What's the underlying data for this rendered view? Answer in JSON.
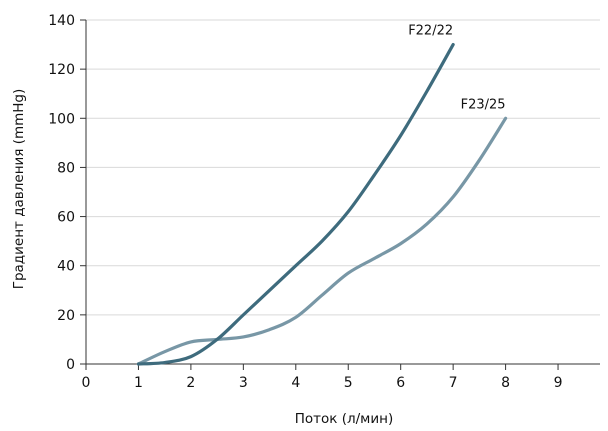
{
  "chart_data": {
    "type": "line",
    "title": "",
    "xlabel": "Поток (л/мин)",
    "ylabel": "Градиент давления (mmHg)",
    "xlim": [
      0,
      9.8
    ],
    "ylim": [
      0,
      140
    ],
    "x_ticks": [
      0,
      1,
      2,
      3,
      4,
      5,
      6,
      7,
      8,
      9
    ],
    "y_ticks": [
      0,
      20,
      40,
      60,
      80,
      100,
      120,
      140
    ],
    "grid": "y",
    "legend": "none",
    "series": [
      {
        "name": "F22/22",
        "color": "#3e6b7d",
        "points": [
          [
            1.0,
            0
          ],
          [
            1.5,
            0.6
          ],
          [
            2.0,
            3
          ],
          [
            2.5,
            10
          ],
          [
            3.0,
            20
          ],
          [
            3.5,
            30
          ],
          [
            4.0,
            40
          ],
          [
            4.5,
            50
          ],
          [
            5.0,
            62
          ],
          [
            5.5,
            77
          ],
          [
            6.0,
            93
          ],
          [
            6.5,
            111
          ],
          [
            7.0,
            130
          ]
        ]
      },
      {
        "name": "F23/25",
        "color": "#7897a6",
        "points": [
          [
            1.0,
            0
          ],
          [
            1.5,
            5
          ],
          [
            2.0,
            9
          ],
          [
            2.5,
            10
          ],
          [
            3.0,
            11
          ],
          [
            3.5,
            14
          ],
          [
            4.0,
            19
          ],
          [
            4.5,
            28
          ],
          [
            5.0,
            37
          ],
          [
            5.5,
            43
          ],
          [
            6.0,
            49
          ],
          [
            6.5,
            57
          ],
          [
            7.0,
            68
          ],
          [
            7.5,
            83
          ],
          [
            8.0,
            100
          ]
        ]
      }
    ]
  }
}
